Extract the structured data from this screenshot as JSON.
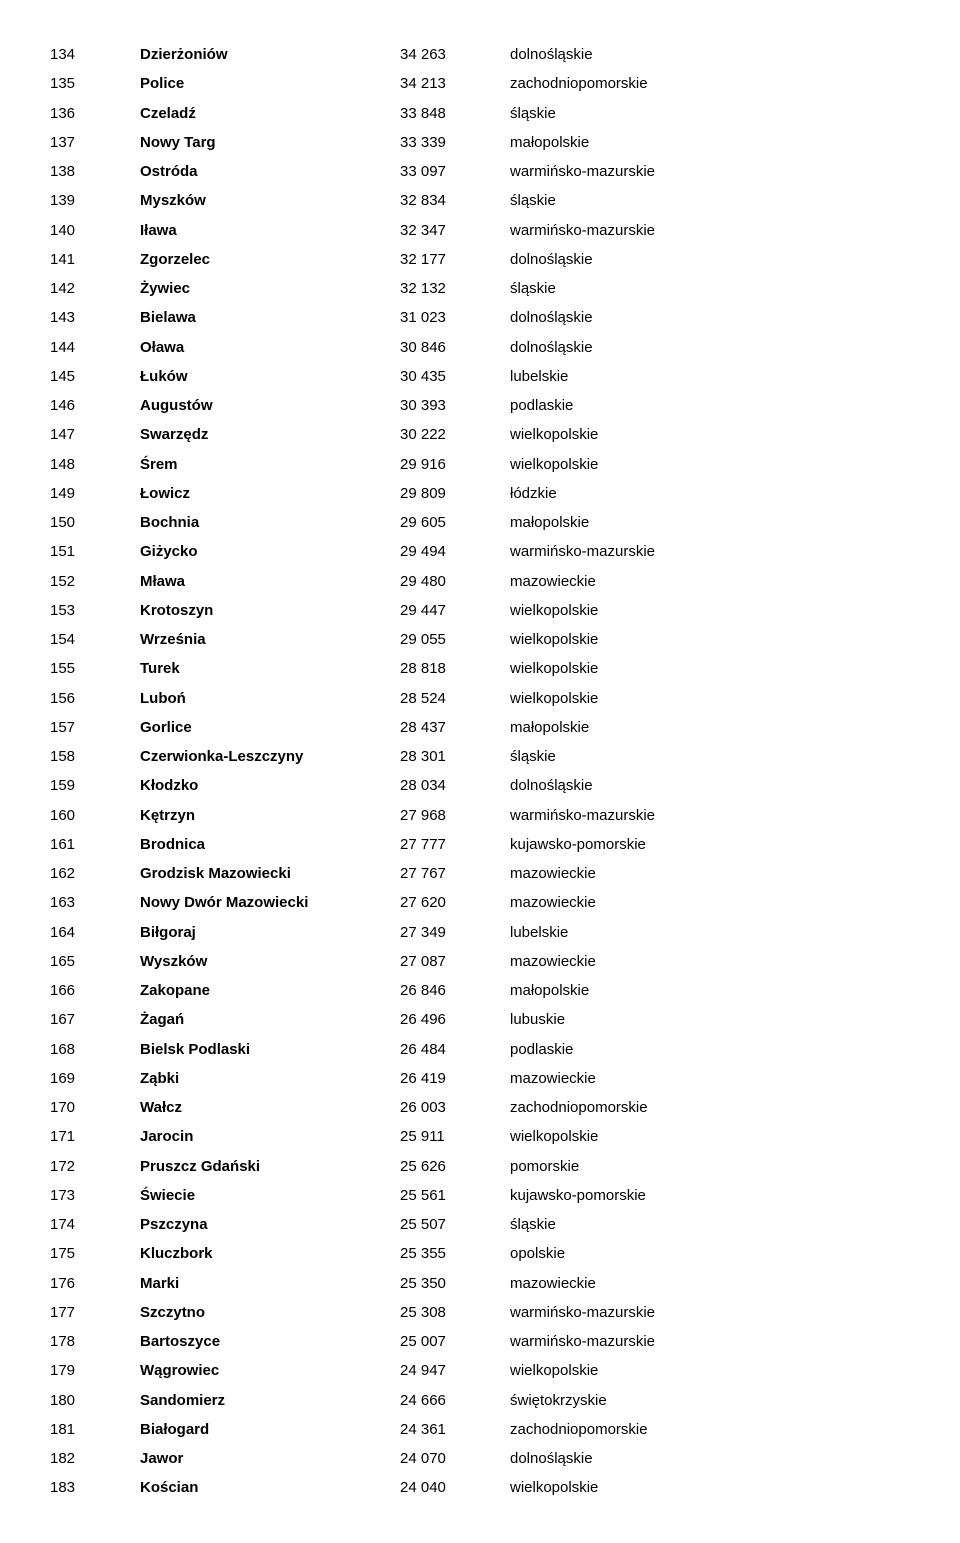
{
  "rows": [
    {
      "n": "134",
      "city": "Dzierżoniów",
      "pop": "34 263",
      "reg": "dolnośląskie"
    },
    {
      "n": "135",
      "city": "Police",
      "pop": "34 213",
      "reg": "zachodniopomorskie"
    },
    {
      "n": "136",
      "city": "Czeladź",
      "pop": "33 848",
      "reg": "śląskie"
    },
    {
      "n": "137",
      "city": "Nowy Targ",
      "pop": "33 339",
      "reg": "małopolskie"
    },
    {
      "n": "138",
      "city": "Ostróda",
      "pop": "33 097",
      "reg": "warmińsko-mazurskie"
    },
    {
      "n": "139",
      "city": "Myszków",
      "pop": "32 834",
      "reg": "śląskie"
    },
    {
      "n": "140",
      "city": "Iława",
      "pop": "32 347",
      "reg": "warmińsko-mazurskie"
    },
    {
      "n": "141",
      "city": "Zgorzelec",
      "pop": "32 177",
      "reg": "dolnośląskie"
    },
    {
      "n": "142",
      "city": "Żywiec",
      "pop": "32 132",
      "reg": "śląskie"
    },
    {
      "n": "143",
      "city": "Bielawa",
      "pop": "31 023",
      "reg": "dolnośląskie"
    },
    {
      "n": "144",
      "city": "Oława",
      "pop": "30 846",
      "reg": "dolnośląskie"
    },
    {
      "n": "145",
      "city": "Łuków",
      "pop": "30 435",
      "reg": "lubelskie"
    },
    {
      "n": "146",
      "city": "Augustów",
      "pop": "30 393",
      "reg": "podlaskie"
    },
    {
      "n": "147",
      "city": "Swarzędz",
      "pop": "30 222",
      "reg": "wielkopolskie"
    },
    {
      "n": "148",
      "city": "Śrem",
      "pop": "29 916",
      "reg": "wielkopolskie"
    },
    {
      "n": "149",
      "city": "Łowicz",
      "pop": "29 809",
      "reg": "łódzkie"
    },
    {
      "n": "150",
      "city": "Bochnia",
      "pop": "29 605",
      "reg": "małopolskie"
    },
    {
      "n": "151",
      "city": "Giżycko",
      "pop": "29 494",
      "reg": "warmińsko-mazurskie"
    },
    {
      "n": "152",
      "city": "Mława",
      "pop": "29 480",
      "reg": "mazowieckie"
    },
    {
      "n": "153",
      "city": "Krotoszyn",
      "pop": "29 447",
      "reg": "wielkopolskie"
    },
    {
      "n": "154",
      "city": "Września",
      "pop": "29 055",
      "reg": "wielkopolskie"
    },
    {
      "n": "155",
      "city": "Turek",
      "pop": "28 818",
      "reg": "wielkopolskie"
    },
    {
      "n": "156",
      "city": "Luboń",
      "pop": "28 524",
      "reg": "wielkopolskie"
    },
    {
      "n": "157",
      "city": "Gorlice",
      "pop": "28 437",
      "reg": "małopolskie"
    },
    {
      "n": "158",
      "city": "Czerwionka-Leszczyny",
      "pop": "28 301",
      "reg": "śląskie"
    },
    {
      "n": "159",
      "city": "Kłodzko",
      "pop": "28 034",
      "reg": "dolnośląskie"
    },
    {
      "n": "160",
      "city": "Kętrzyn",
      "pop": "27 968",
      "reg": "warmińsko-mazurskie"
    },
    {
      "n": "161",
      "city": "Brodnica",
      "pop": "27 777",
      "reg": "kujawsko-pomorskie"
    },
    {
      "n": "162",
      "city": "Grodzisk Mazowiecki",
      "pop": "27 767",
      "reg": "mazowieckie"
    },
    {
      "n": "163",
      "city": "Nowy Dwór Mazowiecki",
      "pop": "27 620",
      "reg": "mazowieckie"
    },
    {
      "n": "164",
      "city": "Biłgoraj",
      "pop": "27 349",
      "reg": "lubelskie"
    },
    {
      "n": "165",
      "city": "Wyszków",
      "pop": "27 087",
      "reg": "mazowieckie"
    },
    {
      "n": "166",
      "city": "Zakopane",
      "pop": "26 846",
      "reg": "małopolskie"
    },
    {
      "n": "167",
      "city": "Żagań",
      "pop": "26 496",
      "reg": "lubuskie"
    },
    {
      "n": "168",
      "city": "Bielsk Podlaski",
      "pop": "26 484",
      "reg": "podlaskie"
    },
    {
      "n": "169",
      "city": "Ząbki",
      "pop": "26 419",
      "reg": "mazowieckie"
    },
    {
      "n": "170",
      "city": "Wałcz",
      "pop": "26 003",
      "reg": "zachodniopomorskie"
    },
    {
      "n": "171",
      "city": "Jarocin",
      "pop": "25 911",
      "reg": "wielkopolskie"
    },
    {
      "n": "172",
      "city": "Pruszcz Gdański",
      "pop": "25 626",
      "reg": "pomorskie"
    },
    {
      "n": "173",
      "city": "Świecie",
      "pop": "25 561",
      "reg": "kujawsko-pomorskie"
    },
    {
      "n": "174",
      "city": "Pszczyna",
      "pop": "25 507",
      "reg": "śląskie"
    },
    {
      "n": "175",
      "city": "Kluczbork",
      "pop": "25 355",
      "reg": "opolskie"
    },
    {
      "n": "176",
      "city": "Marki",
      "pop": "25 350",
      "reg": "mazowieckie"
    },
    {
      "n": "177",
      "city": "Szczytno",
      "pop": "25 308",
      "reg": "warmińsko-mazurskie"
    },
    {
      "n": "178",
      "city": "Bartoszyce",
      "pop": "25 007",
      "reg": "warmińsko-mazurskie"
    },
    {
      "n": "179",
      "city": "Wągrowiec",
      "pop": "24 947",
      "reg": "wielkopolskie"
    },
    {
      "n": "180",
      "city": "Sandomierz",
      "pop": "24 666",
      "reg": "świętokrzyskie"
    },
    {
      "n": "181",
      "city": "Białogard",
      "pop": "24 361",
      "reg": "zachodniopomorskie"
    },
    {
      "n": "182",
      "city": "Jawor",
      "pop": "24 070",
      "reg": "dolnośląskie"
    },
    {
      "n": "183",
      "city": "Kościan",
      "pop": "24 040",
      "reg": "wielkopolskie"
    }
  ]
}
